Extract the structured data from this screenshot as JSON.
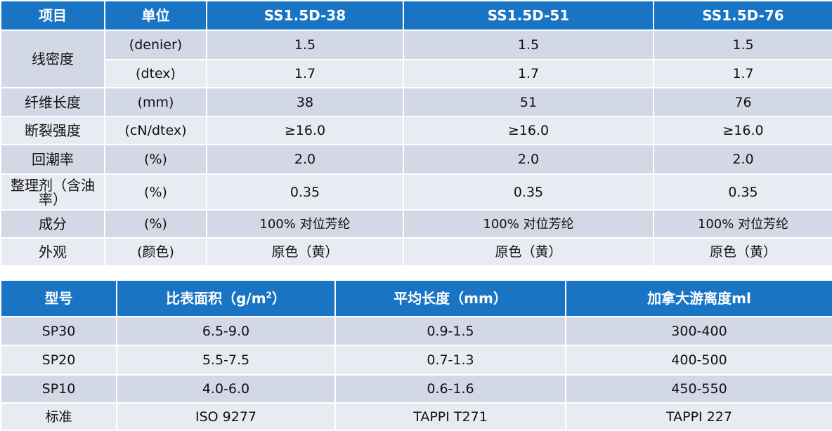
{
  "table1": {
    "headers": [
      "项目",
      "单位",
      "SS1.5D-38",
      "SS1.5D-51",
      "SS1.5D-76"
    ],
    "rows": [
      {
        "item": "线密度",
        "unit": "(denier)",
        "values": [
          "1.5",
          "1.5",
          "1.5"
        ]
      },
      {
        "item": "",
        "unit": "(dtex)",
        "values": [
          "1.7",
          "1.7",
          "1.7"
        ]
      },
      {
        "item": "纤维长度",
        "unit": "(mm)",
        "values": [
          "38",
          "51",
          "76"
        ]
      },
      {
        "item": "断裂强度",
        "unit": "(cN/dtex)",
        "values": [
          "≥16.0",
          "≥16.0",
          "≥16.0"
        ]
      },
      {
        "item": "回潮率",
        "unit": "(%)",
        "values": [
          "2.0",
          "2.0",
          "2.0"
        ]
      },
      {
        "item": "整理剂（含油率）",
        "unit": "(%)",
        "values": [
          "0.35",
          "0.35",
          "0.35"
        ]
      },
      {
        "item": "成分",
        "unit": "(%)",
        "values": [
          "100% 对位芳纶",
          "100% 对位芳纶",
          "100% 对位芳纶"
        ]
      },
      {
        "item": "外观",
        "unit": "(颜色)",
        "values": [
          "原色（黄）",
          "原色（黄）",
          "原色（黄）"
        ]
      }
    ]
  },
  "table2": {
    "headers": [
      "型号",
      "比表面积（g/m",
      "2",
      "）",
      "平均长度（mm）",
      "加拿大游离度ml"
    ],
    "rows": [
      [
        "SP30",
        "6.5-9.0",
        "0.9-1.5",
        "300-400"
      ],
      [
        "SP20",
        "5.5-7.5",
        "0.7-1.3",
        "400-500"
      ],
      [
        "SP10",
        "4.0-6.0",
        "0.6-1.6",
        "450-550"
      ],
      [
        "标准",
        "ISO 9277",
        "TAPPI T271",
        "TAPPI 227"
      ]
    ]
  }
}
